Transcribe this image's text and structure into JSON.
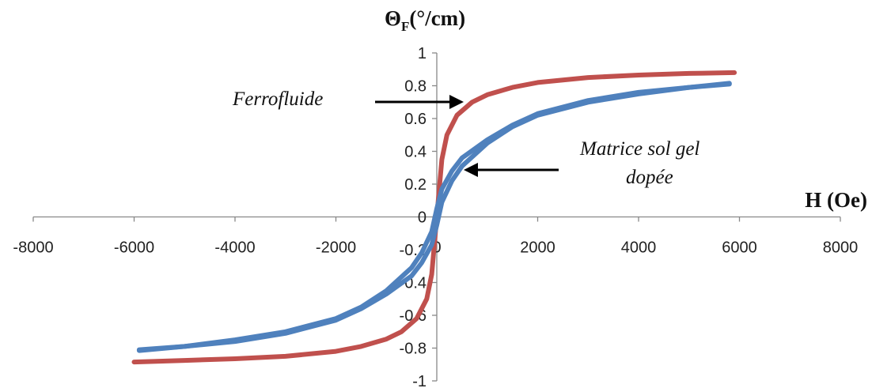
{
  "chart_data": {
    "type": "line",
    "xlabel": "H (Oe)",
    "ylabel": {
      "main": "Θ",
      "sub": "F",
      "unit": "(°/cm)"
    },
    "xlim": [
      -8000,
      8000
    ],
    "ylim": [
      -1,
      1
    ],
    "x_ticks": [
      -8000,
      -6000,
      -4000,
      -2000,
      0,
      2000,
      4000,
      6000,
      8000
    ],
    "y_ticks": [
      -1,
      -0.8,
      -0.6,
      -0.4,
      -0.2,
      0,
      0.2,
      0.4,
      0.6,
      0.8,
      1
    ],
    "grid": false,
    "series": [
      {
        "name": "Ferrofluide",
        "color": "#c0504d",
        "branches": [
          {
            "x": [
              -6000,
              -5000,
              -4000,
              -3000,
              -2000,
              -1500,
              -1000,
              -700,
              -400,
              -200,
              -100,
              0,
              100,
              200,
              400,
              700,
              1000,
              1500,
              2000,
              3000,
              4000,
              5000,
              5900
            ],
            "y": [
              -0.885,
              -0.875,
              -0.865,
              -0.85,
              -0.82,
              -0.79,
              -0.745,
              -0.7,
              -0.62,
              -0.5,
              -0.35,
              0.0,
              0.35,
              0.5,
              0.62,
              0.7,
              0.745,
              0.79,
              0.82,
              0.85,
              0.865,
              0.875,
              0.88
            ]
          }
        ]
      },
      {
        "name": "Matrice sol gel dopée",
        "color": "#4f81bd",
        "branches": [
          {
            "x": [
              -5900,
              -5000,
              -4000,
              -3000,
              -2000,
              -1500,
              -1000,
              -500,
              -300,
              -100,
              0,
              100,
              300,
              500,
              1000,
              1500,
              2000,
              3000,
              4000,
              5000,
              5800
            ],
            "y": [
              -0.815,
              -0.79,
              -0.76,
              -0.71,
              -0.63,
              -0.56,
              -0.47,
              -0.36,
              -0.28,
              -0.17,
              -0.05,
              0.09,
              0.22,
              0.31,
              0.45,
              0.55,
              0.62,
              0.7,
              0.75,
              0.79,
              0.81
            ]
          },
          {
            "x": [
              5800,
              5000,
              4000,
              3000,
              2000,
              1500,
              1000,
              500,
              300,
              100,
              0,
              -100,
              -300,
              -500,
              -1000,
              -1500,
              -2000,
              -3000,
              -4000,
              -5000,
              -5900
            ],
            "y": [
              0.815,
              0.79,
              0.76,
              0.71,
              0.63,
              0.56,
              0.47,
              0.36,
              0.28,
              0.17,
              0.05,
              -0.09,
              -0.22,
              -0.31,
              -0.45,
              -0.55,
              -0.62,
              -0.7,
              -0.75,
              -0.79,
              -0.81
            ]
          }
        ]
      }
    ],
    "annotations": [
      {
        "text": "Ferrofluide",
        "points_to": {
          "x": 450,
          "y": 0.71
        }
      },
      {
        "lines": [
          "Matrice sol gel",
          "dopée"
        ],
        "points_to": {
          "x": 550,
          "y": 0.29
        }
      }
    ]
  }
}
